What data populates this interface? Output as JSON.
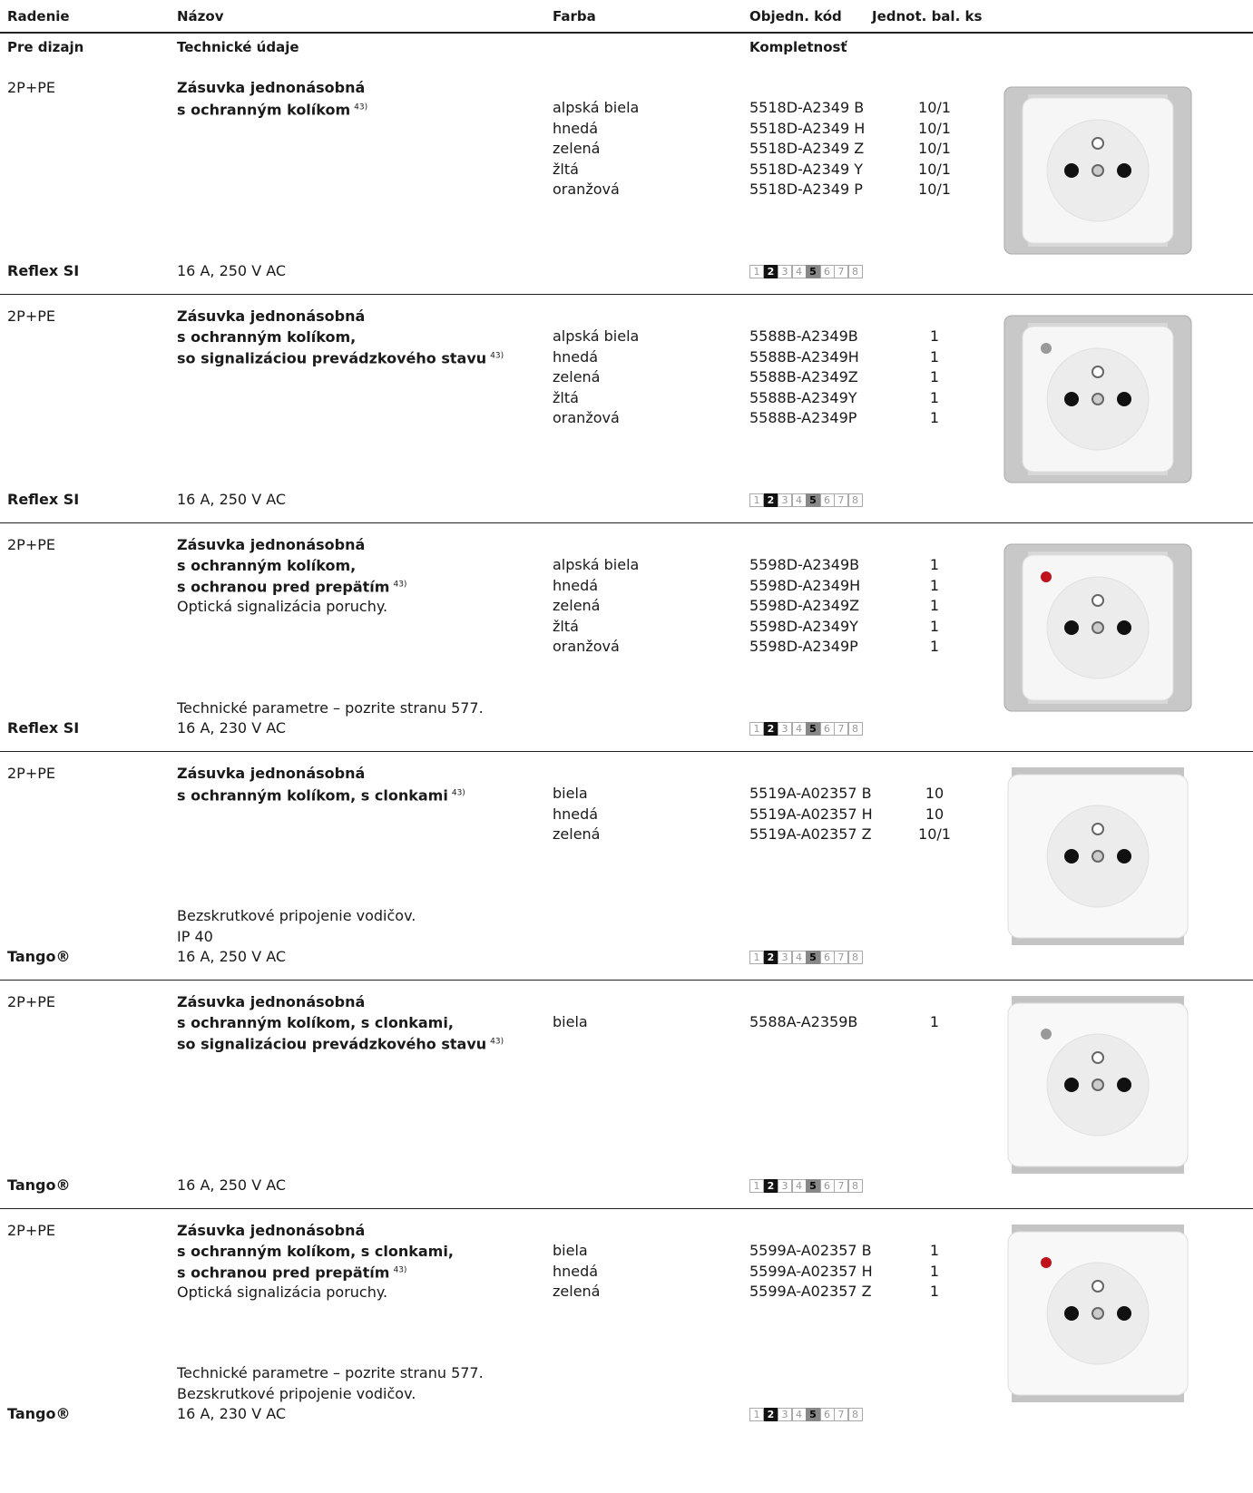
{
  "header": {
    "columns": [
      "Radenie",
      "Názov",
      "Farba",
      "Objedn. kód",
      "Jednot. bal. ks"
    ],
    "subcolumns": [
      "Pre dizajn",
      "Technické údaje",
      "Kompletnosť"
    ]
  },
  "products": [
    {
      "type": "2P+PE",
      "design": "Reflex SI",
      "name": [
        "Zásuvka jednonásobná",
        "s ochranným kolíkom"
      ],
      "note": "43)",
      "description": [],
      "technical": [
        "16 A, 250 V AC"
      ],
      "variants": [
        {
          "color": "alpská biela",
          "code": "5518D-A2349 B",
          "pack": "10/1"
        },
        {
          "color": "hnedá",
          "code": "5518D-A2349 H",
          "pack": "10/1"
        },
        {
          "color": "zelená",
          "code": "5518D-A2349 Z",
          "pack": "10/1"
        },
        {
          "color": "žltá",
          "code": "5518D-A2349 Y",
          "pack": "10/1"
        },
        {
          "color": "oranžová",
          "code": "5518D-A2349 P",
          "pack": "10/1"
        }
      ],
      "completeness": {
        "labels": [
          "1",
          "2",
          "3",
          "4",
          "5",
          "6",
          "7",
          "8"
        ],
        "filled": [
          "2"
        ],
        "shaded": [
          "5"
        ]
      }
    },
    {
      "type": "2P+PE",
      "design": "Reflex SI",
      "name": [
        "Zásuvka jednonásobná",
        "s ochranným kolíkom,",
        "so signalizáciou prevádzkového stavu"
      ],
      "note": "43)",
      "description": [],
      "technical": [
        "16 A, 250 V AC"
      ],
      "variants": [
        {
          "color": "alpská biela",
          "code": "5588B-A2349B",
          "pack": "1"
        },
        {
          "color": "hnedá",
          "code": "5588B-A2349H",
          "pack": "1"
        },
        {
          "color": "zelená",
          "code": "5588B-A2349Z",
          "pack": "1"
        },
        {
          "color": "žltá",
          "code": "5588B-A2349Y",
          "pack": "1"
        },
        {
          "color": "oranžová",
          "code": "5588B-A2349P",
          "pack": "1"
        }
      ],
      "completeness": {
        "labels": [
          "1",
          "2",
          "3",
          "4",
          "5",
          "6",
          "7",
          "8"
        ],
        "filled": [
          "2"
        ],
        "shaded": [
          "5"
        ]
      }
    },
    {
      "type": "2P+PE",
      "design": "Reflex SI",
      "name": [
        "Zásuvka jednonásobná",
        "s ochranným kolíkom,",
        "s ochranou pred prepätím"
      ],
      "note": "43)",
      "description": [
        "Optická signalizácia poruchy."
      ],
      "technical": [
        "Technické parametre – pozrite stranu 577.",
        "16 A, 230 V AC"
      ],
      "variants": [
        {
          "color": "alpská biela",
          "code": "5598D-A2349B",
          "pack": "1"
        },
        {
          "color": "hnedá",
          "code": "5598D-A2349H",
          "pack": "1"
        },
        {
          "color": "zelená",
          "code": "5598D-A2349Z",
          "pack": "1"
        },
        {
          "color": "žltá",
          "code": "5598D-A2349Y",
          "pack": "1"
        },
        {
          "color": "oranžová",
          "code": "5598D-A2349P",
          "pack": "1"
        }
      ],
      "completeness": {
        "labels": [
          "1",
          "2",
          "3",
          "4",
          "5",
          "6",
          "7",
          "8"
        ],
        "filled": [
          "2"
        ],
        "shaded": [
          "5"
        ]
      }
    },
    {
      "type": "2P+PE",
      "design": "Tango®",
      "name": [
        "Zásuvka jednonásobná",
        "s ochranným kolíkom, s clonkami"
      ],
      "note": "43)",
      "description": [],
      "technical": [
        "Bezskrutkové pripojenie vodičov.",
        "IP 40",
        "16 A, 250 V AC"
      ],
      "variants": [
        {
          "color": "biela",
          "code": "5519A-A02357 B",
          "pack": "10"
        },
        {
          "color": "hnedá",
          "code": "5519A-A02357 H",
          "pack": "10"
        },
        {
          "color": "zelená",
          "code": "5519A-A02357 Z",
          "pack": "10/1"
        }
      ],
      "completeness": {
        "labels": [
          "1",
          "2",
          "3",
          "4",
          "5",
          "6",
          "7",
          "8"
        ],
        "filled": [
          "2"
        ],
        "shaded": [
          "5"
        ]
      }
    },
    {
      "type": "2P+PE",
      "design": "Tango®",
      "name": [
        "Zásuvka jednonásobná",
        "s ochranným kolíkom, s clonkami,",
        "so signalizáciou prevádzkového stavu"
      ],
      "note": "43)",
      "description": [],
      "technical": [
        "16 A, 250 V AC"
      ],
      "variants": [
        {
          "color": "biela",
          "code": "5588A-A2359B",
          "pack": "1"
        }
      ],
      "completeness": {
        "labels": [
          "1",
          "2",
          "3",
          "4",
          "5",
          "6",
          "7",
          "8"
        ],
        "filled": [
          "2"
        ],
        "shaded": [
          "5"
        ]
      }
    },
    {
      "type": "2P+PE",
      "design": "Tango®",
      "name": [
        "Zásuvka jednonásobná",
        "s ochranným kolíkom, s clonkami,",
        "s ochranou pred prepätím"
      ],
      "note": "43)",
      "description": [
        "Optická signalizácia poruchy."
      ],
      "technical": [
        "Technické parametre – pozrite stranu 577.",
        "Bezskrutkové pripojenie vodičov.",
        "16 A, 230 V AC"
      ],
      "variants": [
        {
          "color": "biela",
          "code": "5599A-A02357 B",
          "pack": "1"
        },
        {
          "color": "hnedá",
          "code": "5599A-A02357 H",
          "pack": "1"
        },
        {
          "color": "zelená",
          "code": "5599A-A02357 Z",
          "pack": "1"
        }
      ],
      "completeness": {
        "labels": [
          "1",
          "2",
          "3",
          "4",
          "5",
          "6",
          "7",
          "8"
        ],
        "filled": [
          "2"
        ],
        "shaded": [
          "5"
        ]
      }
    }
  ]
}
